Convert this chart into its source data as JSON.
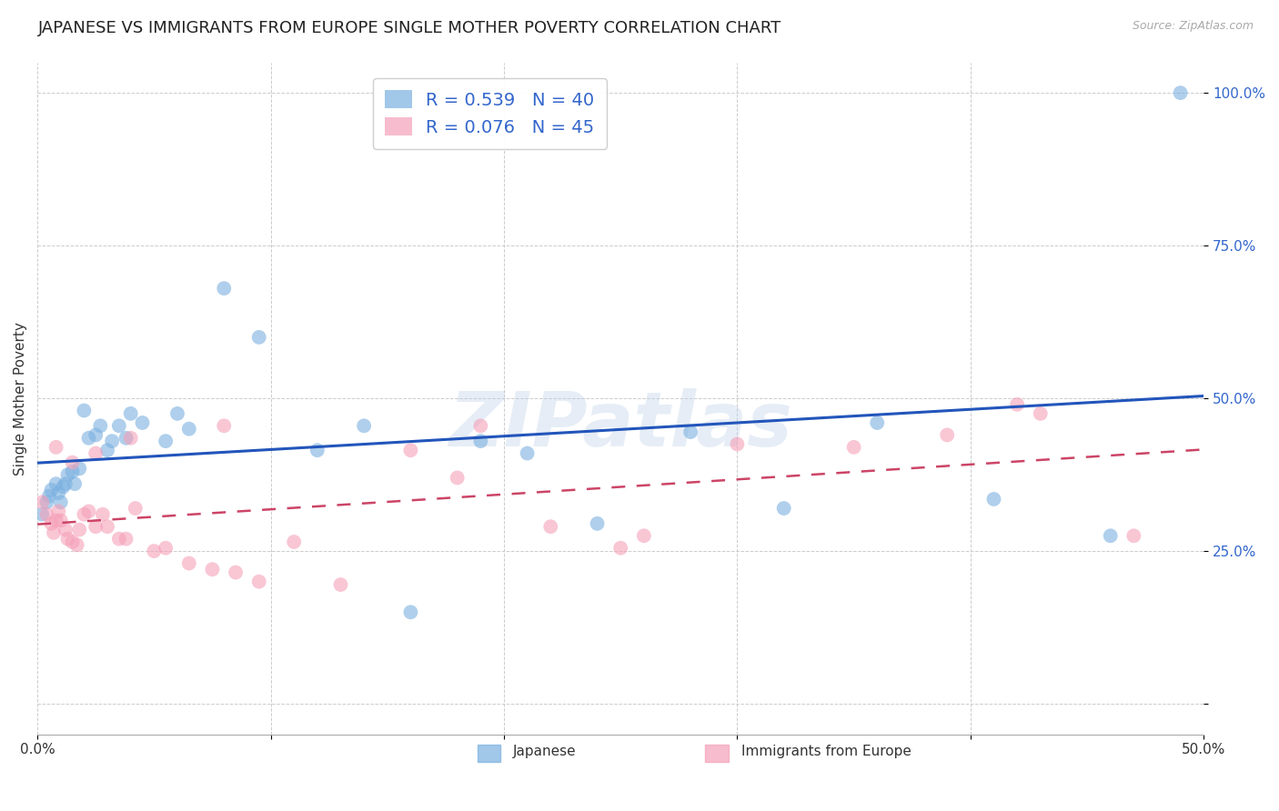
{
  "title": "JAPANESE VS IMMIGRANTS FROM EUROPE SINGLE MOTHER POVERTY CORRELATION CHART",
  "source": "Source: ZipAtlas.com",
  "ylabel": "Single Mother Poverty",
  "watermark": "ZIPatlas",
  "legend_entry_1": "R = 0.539   N = 40",
  "legend_entry_2": "R = 0.076   N = 45",
  "legend_label_1": "Japanese",
  "legend_label_2": "Immigrants from Europe",
  "japanese_color": "#7ab0e0",
  "europe_color": "#f5a0b8",
  "japanese_line_color": "#2255bb",
  "europe_line_color": "#cc4466",
  "background_color": "#ffffff",
  "grid_color": "#cccccc",
  "japanese_x": [
    0.002,
    0.004,
    0.005,
    0.006,
    0.008,
    0.009,
    0.01,
    0.011,
    0.012,
    0.013,
    0.015,
    0.016,
    0.018,
    0.02,
    0.022,
    0.025,
    0.027,
    0.03,
    0.032,
    0.035,
    0.038,
    0.04,
    0.045,
    0.055,
    0.06,
    0.065,
    0.08,
    0.095,
    0.12,
    0.14,
    0.16,
    0.19,
    0.21,
    0.24,
    0.28,
    0.32,
    0.36,
    0.41,
    0.46,
    0.49
  ],
  "japanese_y": [
    0.31,
    0.33,
    0.34,
    0.35,
    0.36,
    0.345,
    0.33,
    0.355,
    0.36,
    0.375,
    0.38,
    0.36,
    0.385,
    0.48,
    0.435,
    0.44,
    0.455,
    0.415,
    0.43,
    0.455,
    0.435,
    0.475,
    0.46,
    0.43,
    0.475,
    0.45,
    0.68,
    0.6,
    0.415,
    0.455,
    0.15,
    0.43,
    0.41,
    0.295,
    0.445,
    0.32,
    0.46,
    0.335,
    0.275,
    1.0
  ],
  "europe_x": [
    0.002,
    0.004,
    0.006,
    0.007,
    0.008,
    0.009,
    0.01,
    0.012,
    0.013,
    0.015,
    0.017,
    0.018,
    0.02,
    0.022,
    0.025,
    0.028,
    0.03,
    0.035,
    0.038,
    0.042,
    0.05,
    0.055,
    0.065,
    0.075,
    0.085,
    0.095,
    0.11,
    0.13,
    0.16,
    0.19,
    0.22,
    0.26,
    0.3,
    0.35,
    0.39,
    0.43,
    0.47,
    0.008,
    0.015,
    0.025,
    0.04,
    0.08,
    0.18,
    0.25,
    0.42
  ],
  "europe_y": [
    0.33,
    0.31,
    0.295,
    0.28,
    0.3,
    0.315,
    0.3,
    0.285,
    0.27,
    0.265,
    0.26,
    0.285,
    0.31,
    0.315,
    0.29,
    0.31,
    0.29,
    0.27,
    0.27,
    0.32,
    0.25,
    0.255,
    0.23,
    0.22,
    0.215,
    0.2,
    0.265,
    0.195,
    0.415,
    0.455,
    0.29,
    0.275,
    0.425,
    0.42,
    0.44,
    0.475,
    0.275,
    0.42,
    0.395,
    0.41,
    0.435,
    0.455,
    0.37,
    0.255,
    0.49
  ],
  "xlim": [
    0.0,
    0.5
  ],
  "ylim": [
    -0.05,
    1.05
  ],
  "x_ticks": [
    0.0,
    0.1,
    0.2,
    0.3,
    0.4,
    0.5
  ],
  "x_tick_labels": [
    "0.0%",
    "",
    "",
    "",
    "",
    "50.0%"
  ],
  "y_ticks": [
    0.0,
    0.25,
    0.5,
    0.75,
    1.0
  ],
  "y_tick_labels": [
    "",
    "25.0%",
    "50.0%",
    "75.0%",
    "100.0%"
  ],
  "title_fontsize": 13,
  "axis_label_fontsize": 11,
  "tick_fontsize": 11,
  "dot_size": 130
}
